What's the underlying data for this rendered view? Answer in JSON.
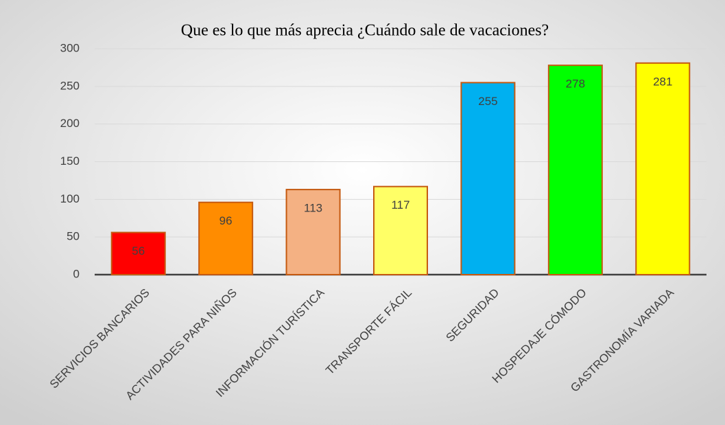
{
  "chart_data": {
    "type": "bar",
    "title": "Que es lo que más aprecia ¿Cuándo sale de vacaciones?",
    "categories": [
      "SERVICIOS BANCARIOS",
      "ACTIVIDADES PARA NIÑOS",
      "INFORMACIÓN TURÍSTICA",
      "TRANSPORTE FÁCIL",
      "SEGURIDAD",
      "HOSPEDAJE CÓMODO",
      "GASTRONOMÍA VARIADA"
    ],
    "values": [
      56,
      96,
      113,
      117,
      255,
      278,
      281
    ],
    "colors": [
      "#ff0000",
      "#ff8c00",
      "#f4b183",
      "#ffff66",
      "#00b0f0",
      "#00ff00",
      "#ffff00"
    ],
    "ylim": [
      0,
      300
    ],
    "yticks": [
      0,
      50,
      100,
      150,
      200,
      250,
      300
    ],
    "grid": true
  }
}
